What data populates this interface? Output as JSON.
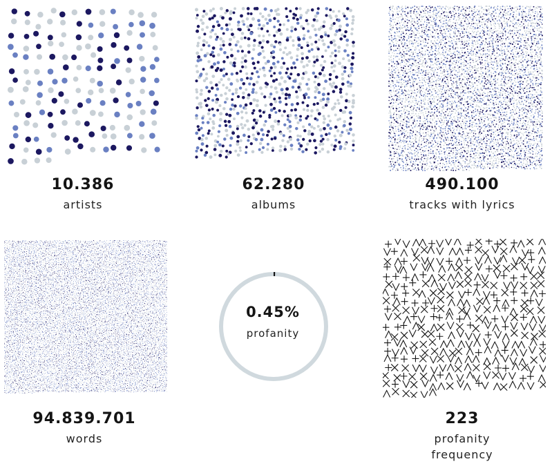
{
  "chart_data": [
    {
      "type": "scatter",
      "name_key": "artists",
      "value_text": "10.386",
      "label": "artists",
      "value": 10386
    },
    {
      "type": "scatter",
      "name_key": "albums",
      "value_text": "62.280",
      "label": "albums",
      "value": 62280
    },
    {
      "type": "scatter",
      "name_key": "tracks",
      "value_text": "490.100",
      "label": "tracks with lyrics",
      "value": 490100
    },
    {
      "type": "scatter",
      "name_key": "words",
      "value_text": "94.839.701",
      "label": "words",
      "value": 94839701
    },
    {
      "type": "pie",
      "name_key": "profanity",
      "value_text": "0.45%",
      "label": "profanity",
      "value": 0.45
    },
    {
      "type": "scatter",
      "name_key": "frequency",
      "value_text": "223",
      "label_lines": [
        "profanity",
        "frequency"
      ],
      "value": 223
    }
  ],
  "colors": {
    "dark": "#1c1860",
    "mid": "#6a80c2",
    "light": "#c8d0d6",
    "ring": "#d0d9de",
    "ink": "#141414"
  },
  "marks": {
    "artists_dots": 160,
    "albums_dots": 820,
    "tracks_dots": 5000,
    "words_dots": 12000,
    "frequency_glyphs": 330
  }
}
